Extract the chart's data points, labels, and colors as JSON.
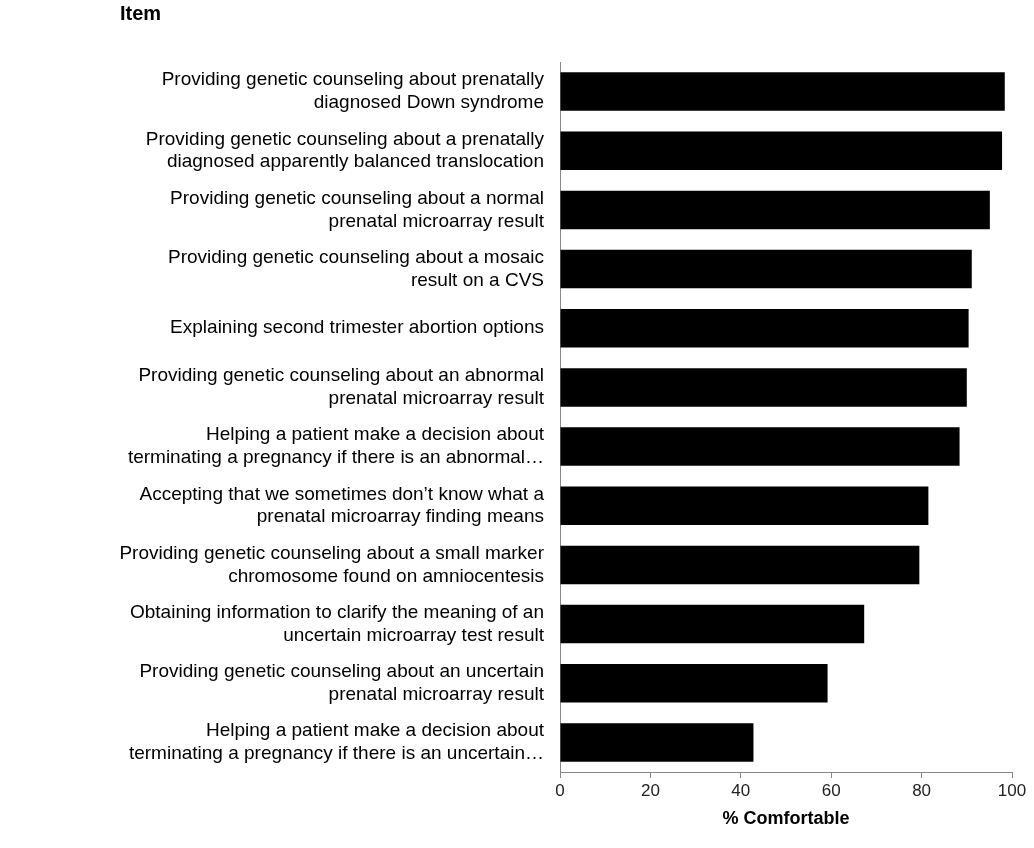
{
  "chart_data": {
    "type": "bar",
    "orientation": "horizontal",
    "title": "Item",
    "xlabel": "% Comfortable",
    "categories": [
      "Providing genetic counseling about prenatally\ndiagnosed Down syndrome",
      "Providing genetic counseling about a prenatally\ndiagnosed apparently balanced translocation",
      "Providing genetic counseling about a normal\nprenatal microarray result",
      "Providing genetic counseling about a mosaic\nresult on a CVS",
      "Explaining second trimester abortion options",
      "Providing genetic counseling about an abnormal\nprenatal microarray result",
      "Helping a patient make a decision about\nterminating a pregnancy if there is an abnormal…",
      "Accepting that we sometimes don’t know what a\nprenatal microarray finding means",
      "Providing genetic counseling about a small marker\nchromosome found on amniocentesis",
      "Obtaining information to clarify the meaning of an\nuncertain microarray test result",
      "Providing genetic counseling about an uncertain\nprenatal microarray result",
      "Helping a patient make a decision about\nterminating a pregnancy if there is an uncertain…"
    ],
    "values": [
      98.4,
      97.8,
      95.1,
      91.1,
      90.4,
      90.0,
      88.4,
      81.5,
      79.5,
      67.3,
      59.2,
      42.8
    ],
    "color": "#000000",
    "xlim": [
      0,
      100
    ],
    "xticks": [
      0,
      20,
      40,
      60,
      80,
      100
    ],
    "grid": false,
    "legend": false
  }
}
